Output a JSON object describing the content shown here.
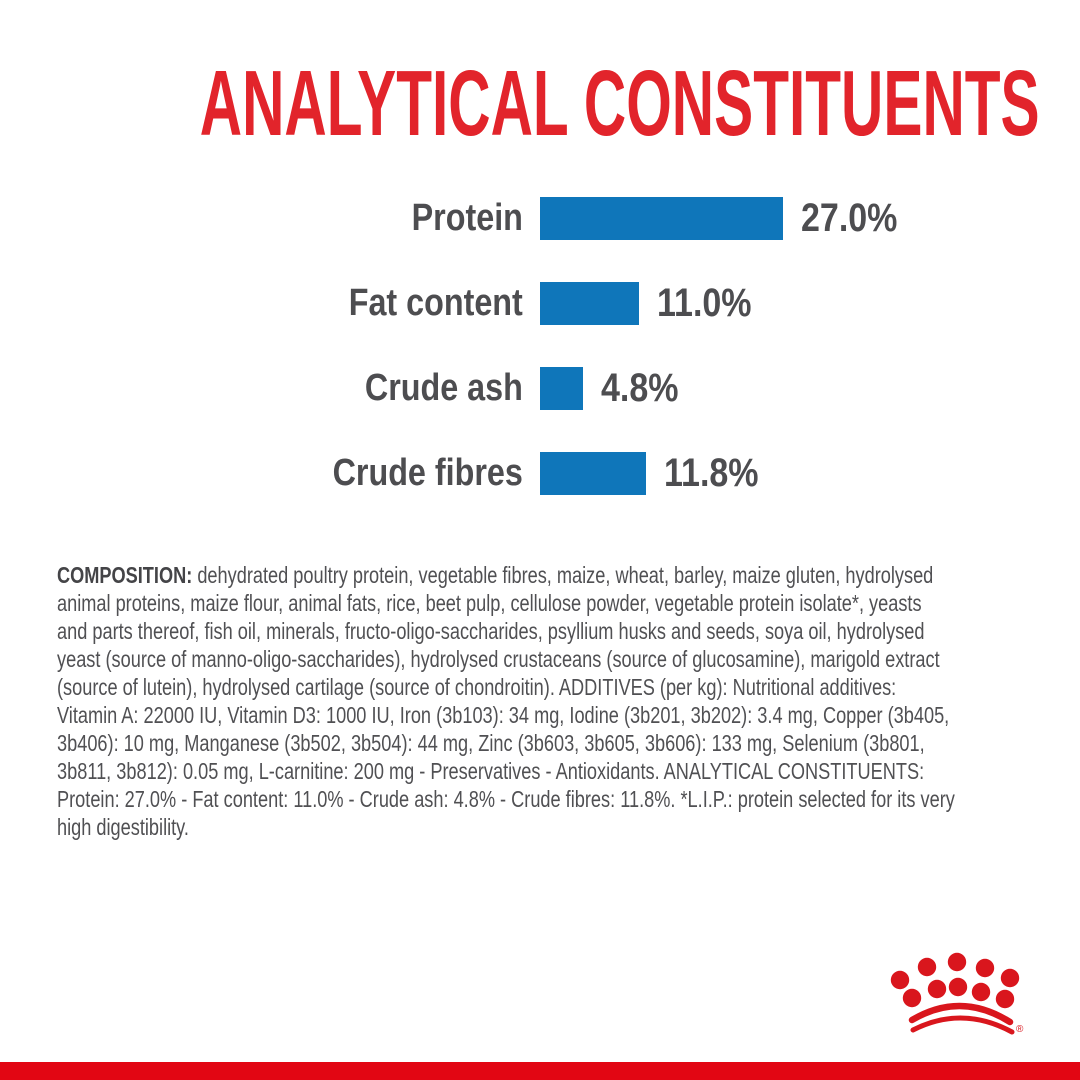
{
  "title": {
    "text": "ANALYTICAL CONSTITUENTS"
  },
  "chart_data": {
    "type": "bar",
    "orientation": "horizontal",
    "title": "ANALYTICAL CONSTITUENTS",
    "categories": [
      "Protein",
      "Fat content",
      "Crude ash",
      "Crude fibres"
    ],
    "values": [
      27.0,
      11.0,
      4.8,
      11.8
    ],
    "unit": "%",
    "xlim": [
      0,
      30
    ],
    "grid": false,
    "axis_visible": false,
    "bar_color": "#0f76ba",
    "rows": [
      {
        "label": "Protein",
        "value": 27.0,
        "value_label": "27.0%"
      },
      {
        "label": "Fat content",
        "value": 11.0,
        "value_label": "11.0%"
      },
      {
        "label": "Crude ash",
        "value": 4.8,
        "value_label": "4.8%"
      },
      {
        "label": "Crude fibres",
        "value": 11.8,
        "value_label": "11.8%"
      }
    ]
  },
  "composition": {
    "label": "COMPOSITION:",
    "lines": [
      " dehydrated poultry protein, vegetable fibres, maize, wheat, barley, maize gluten, hydrolysed",
      "animal proteins, maize flour, animal fats, rice, beet pulp, cellulose powder, vegetable protein isolate*, yeasts",
      "and parts thereof, fish oil, minerals, fructo-oligo-saccharides, psyllium husks and seeds, soya oil, hydrolysed",
      "yeast (source of manno-oligo-saccharides), hydrolysed crustaceans (source of glucosamine), marigold extract",
      "(source of lutein), hydrolysed cartilage (source of chondroitin). ADDITIVES (per kg): Nutritional additives:",
      "Vitamin A: 22000 IU, Vitamin D3: 1000 IU, Iron (3b103): 34 mg, Iodine (3b201, 3b202): 3.4 mg, Copper (3b405,",
      "3b406): 10 mg, Manganese (3b502, 3b504): 44 mg, Zinc (3b603, 3b605, 3b606): 133 mg, Selenium (3b801,",
      "3b811, 3b812): 0.05 mg, L-carnitine: 200 mg - Preservatives - Antioxidants. ANALYTICAL CONSTITUENTS:",
      "Protein: 27.0% - Fat content: 11.0% - Crude ash: 4.8% - Crude fibres: 11.8%. *L.I.P.: protein selected for its very",
      "high digestibility."
    ]
  },
  "logo": {
    "name": "royal-canin-crown",
    "registered_mark": "®"
  },
  "colors": {
    "title_red": "#e2242b",
    "bar_blue": "#0f76ba",
    "text_gray": "#4d4d50",
    "body_text_gray": "#505053",
    "footer_red": "#e20613",
    "crown_red": "#d9161d",
    "background": "#ffffff"
  }
}
